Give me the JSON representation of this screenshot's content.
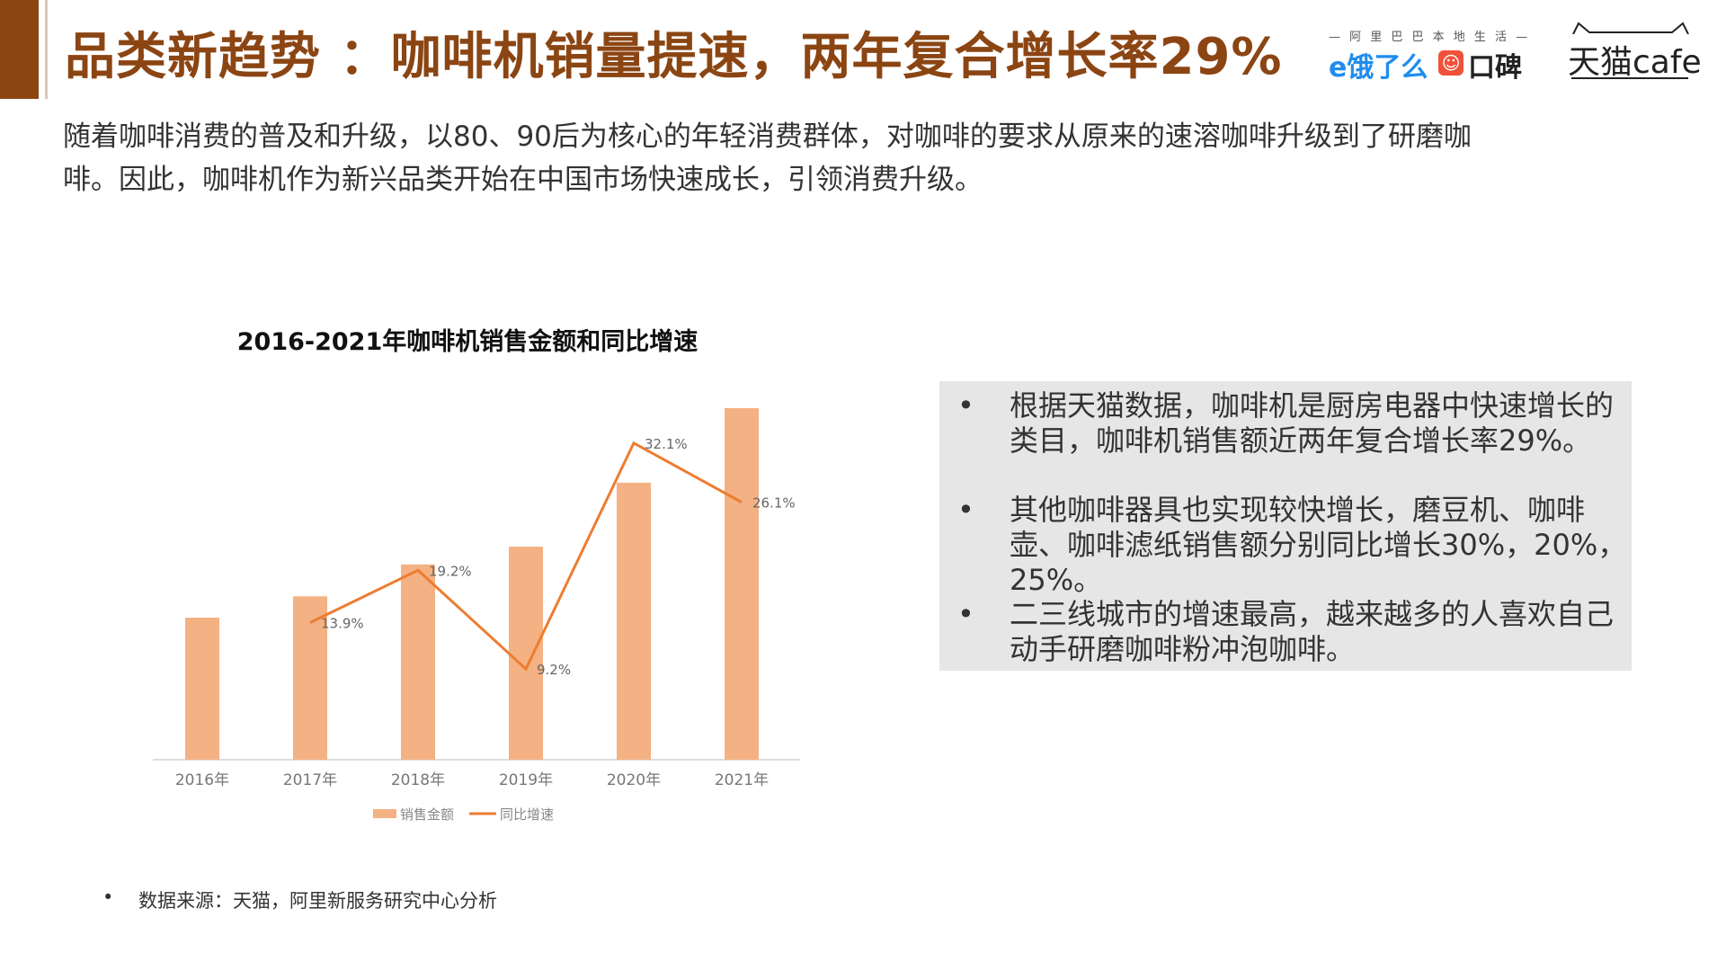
{
  "header": {
    "title": "品类新趋势 ：咖啡机销量提速，两年复合增长率29%",
    "logos": {
      "eleme_tagline": "— 阿 里 巴 巴 本 地 生 活 —",
      "eleme_name": "饿了么",
      "koubei_name": "口碑",
      "tmall_name": "天猫cafe"
    },
    "accent_color": "#8B4513"
  },
  "intro": "随着咖啡消费的普及和升级，以80、90后为核心的年轻消费群体，对咖啡的要求从原来的速溶咖啡升级到了研磨咖啡。因此，咖啡机作为新兴品类开始在中国市场快速成长，引领消费升级。",
  "chart": {
    "title": "2016-2021年咖啡机销售金额和同比增速"
  },
  "chart_data": {
    "type": "bar",
    "title": "2016-2021年咖啡机销售金额和同比增速",
    "categories": [
      "2016年",
      "2017年",
      "2018年",
      "2019年",
      "2020年",
      "2021年"
    ],
    "series": [
      {
        "name": "销售金额",
        "type": "bar",
        "values": [
          40,
          46,
          55,
          60,
          78,
          99
        ],
        "color": "#F4B183"
      },
      {
        "name": "同比增速",
        "type": "line",
        "values": [
          null,
          13.9,
          19.2,
          9.2,
          32.1,
          26.1
        ],
        "labels": [
          "",
          "13.9%",
          "19.2%",
          "9.2%",
          "32.1%",
          "26.1%"
        ],
        "color": "#ED7D31"
      }
    ],
    "bar_ylim": [
      0,
      100
    ],
    "line_ylim": [
      0,
      36
    ],
    "grid": false,
    "legend_position": "bottom"
  },
  "info_box": {
    "bullet_symbol": "•",
    "bullets": [
      "根据天猫数据，咖啡机是厨房电器中快速增长的类目，咖啡机销售额近两年复合增长率29%。",
      "其他咖啡器具也实现较快增长，磨豆机、咖啡壶、咖啡滤纸销售额分别同比增长30%，20%，25%。",
      "二三线城市的增速最高，越来越多的人喜欢自己动手研磨咖啡粉冲泡咖啡。"
    ]
  },
  "footer": {
    "bullet_symbol": "•",
    "source": "数据来源：天猫，阿里新服务研究中心分析"
  }
}
